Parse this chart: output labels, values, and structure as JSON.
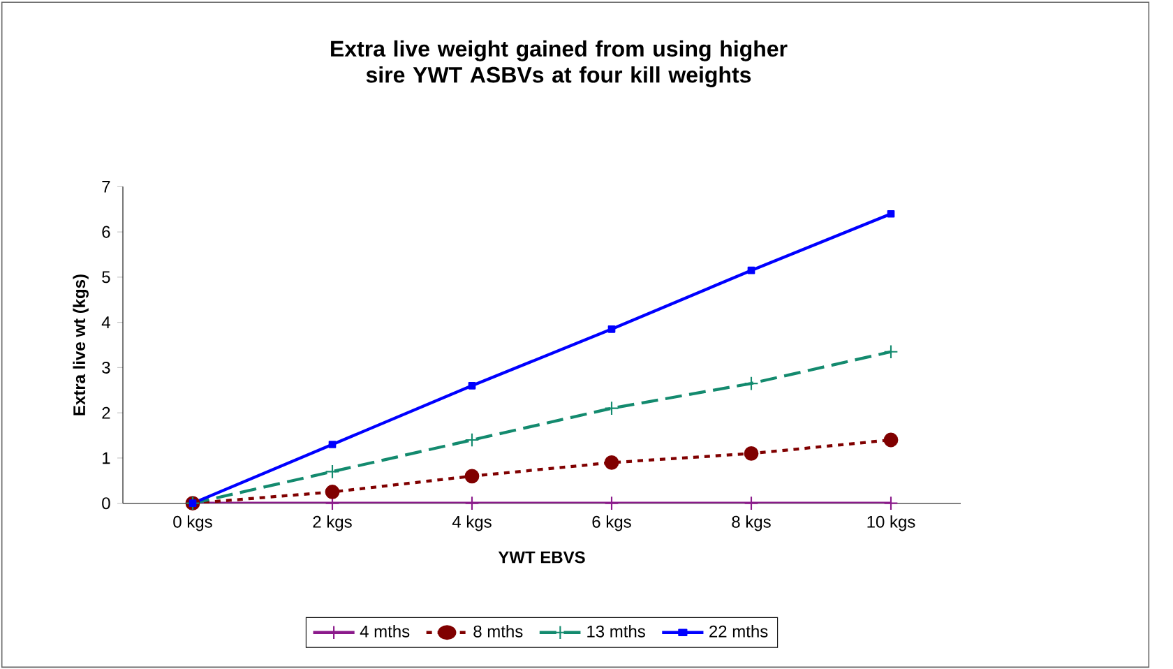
{
  "chart_data": {
    "type": "line",
    "title": "Extra live weight gained from using higher sire YWT ASBVs at four kill weights",
    "xlabel": "YWT EBVS",
    "ylabel": "Extra live wt (kgs)",
    "categories": [
      "0 kgs",
      "2 kgs",
      "4 kgs",
      "6 kgs",
      "8 kgs",
      "10 kgs"
    ],
    "series": [
      {
        "name": "4 mths",
        "color": "#8b1a8b",
        "marker": "cross",
        "line_style": "solid",
        "values": [
          0,
          0,
          0,
          0,
          0,
          0
        ]
      },
      {
        "name": "8 mths",
        "color": "#800000",
        "marker": "circle",
        "line_style": "dotted",
        "values": [
          0,
          0.25,
          0.6,
          0.9,
          1.1,
          1.4
        ]
      },
      {
        "name": "13 mths",
        "color": "#138a6e",
        "marker": "cross",
        "line_style": "dashed",
        "values": [
          0,
          0.7,
          1.4,
          2.1,
          2.65,
          3.35
        ]
      },
      {
        "name": "22 mths",
        "color": "#0000ff",
        "marker": "square",
        "line_style": "solid",
        "values": [
          0,
          1.3,
          2.6,
          3.85,
          5.15,
          6.4
        ]
      }
    ],
    "ylim": [
      0,
      7
    ],
    "yticks": [
      0,
      1,
      2,
      3,
      4,
      5,
      6,
      7
    ],
    "grid": false,
    "legend": "bottom"
  }
}
